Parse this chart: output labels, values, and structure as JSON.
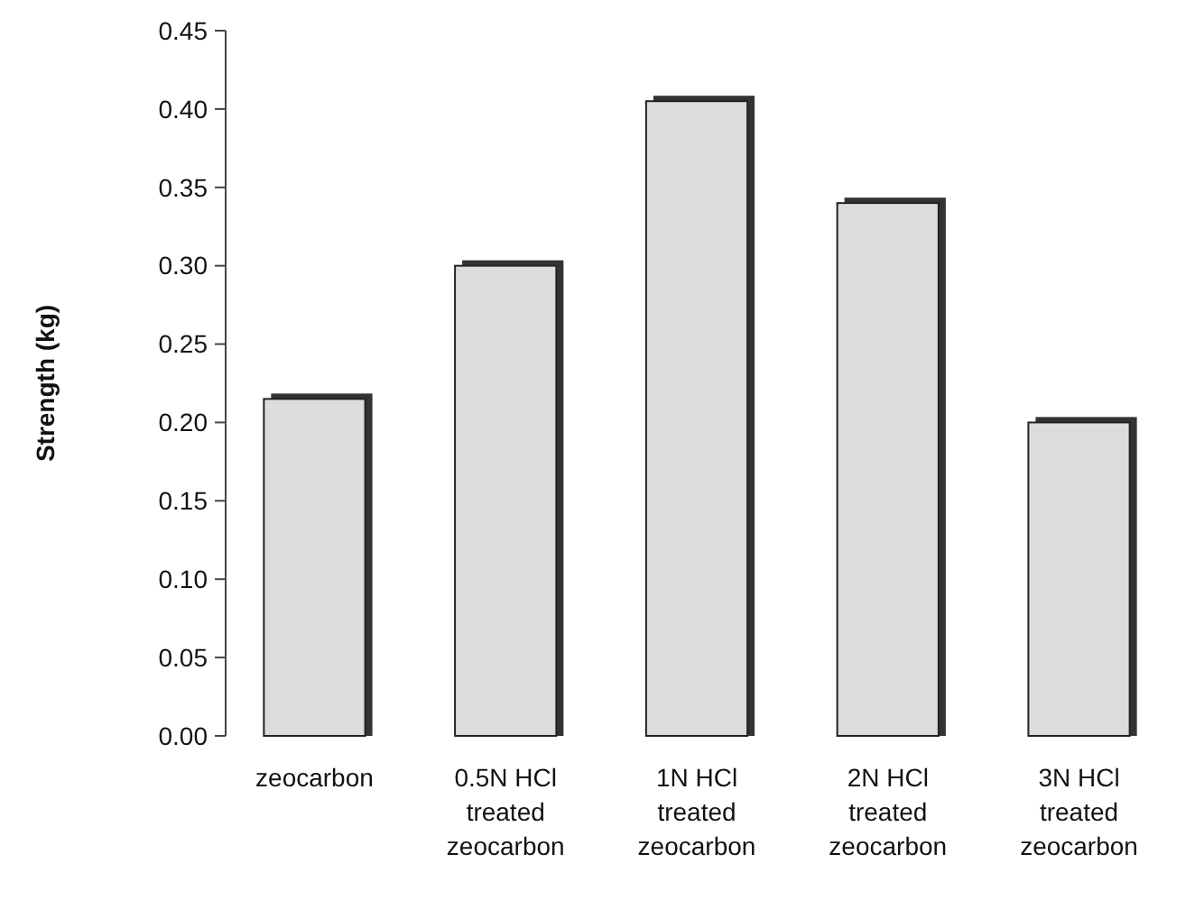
{
  "chart_data": {
    "type": "bar",
    "ylabel": "Strength (kg)",
    "categories": [
      "zeocarbon",
      "0.5N HCl treated zeocarbon",
      "1N HCl treated zeocarbon",
      "2N HCl treated zeocarbon",
      "3N HCl treated zeocarbon"
    ],
    "values": [
      0.215,
      0.3,
      0.405,
      0.34,
      0.2
    ],
    "color": "#dcdcdc",
    "ylim": [
      0,
      0.45
    ],
    "yticks": [
      {
        "value": 0,
        "label": "0.00"
      },
      {
        "value": 0.05,
        "label": "0.05"
      },
      {
        "value": 0.1,
        "label": "0.10"
      },
      {
        "value": 0.15,
        "label": "0.15"
      },
      {
        "value": 0.2,
        "label": "0.20"
      },
      {
        "value": 0.25,
        "label": "0.25"
      },
      {
        "value": 0.3,
        "label": "0.30"
      },
      {
        "value": 0.35,
        "label": "0.35"
      },
      {
        "value": 0.4,
        "label": "0.40"
      },
      {
        "value": 0.45,
        "label": "0.45"
      }
    ],
    "grid": false
  }
}
